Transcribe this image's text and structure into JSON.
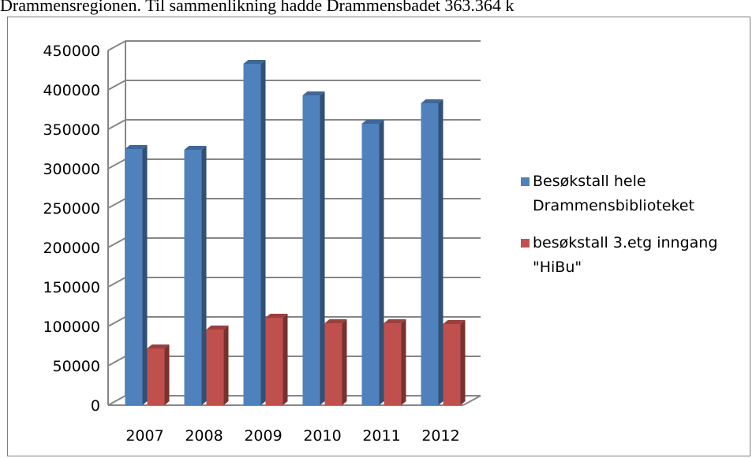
{
  "page": {
    "header_text": "Drammensregionen. Til sammenlikning hadde Drammensbadet 363.364 k"
  },
  "chart_data": {
    "type": "bar",
    "three_d": true,
    "categories": [
      "2007",
      "2008",
      "2009",
      "2010",
      "2011",
      "2012"
    ],
    "series": [
      {
        "name": "Besøkstall hele Drammensbiblioteket",
        "legend_lines": [
          "Besøkstall hele",
          "Drammensbiblioteket"
        ],
        "color": "#4F81BD",
        "values": [
          325000,
          324000,
          433000,
          393000,
          357000,
          383000
        ]
      },
      {
        "name": "besøkstall 3.etg inngang \"HiBu\"",
        "legend_lines": [
          "besøkstall 3.etg inngang",
          "\"HiBu\""
        ],
        "color": "#C0504D",
        "values": [
          72000,
          96000,
          111000,
          104000,
          104000,
          103000
        ]
      }
    ],
    "ylim": [
      0,
      450000
    ],
    "yticks": [
      "0",
      "50000",
      "100000",
      "150000",
      "200000",
      "250000",
      "300000",
      "350000",
      "400000",
      "450000"
    ],
    "grid": true,
    "legend_position": "right",
    "title": "",
    "xlabel": "",
    "ylabel": ""
  }
}
